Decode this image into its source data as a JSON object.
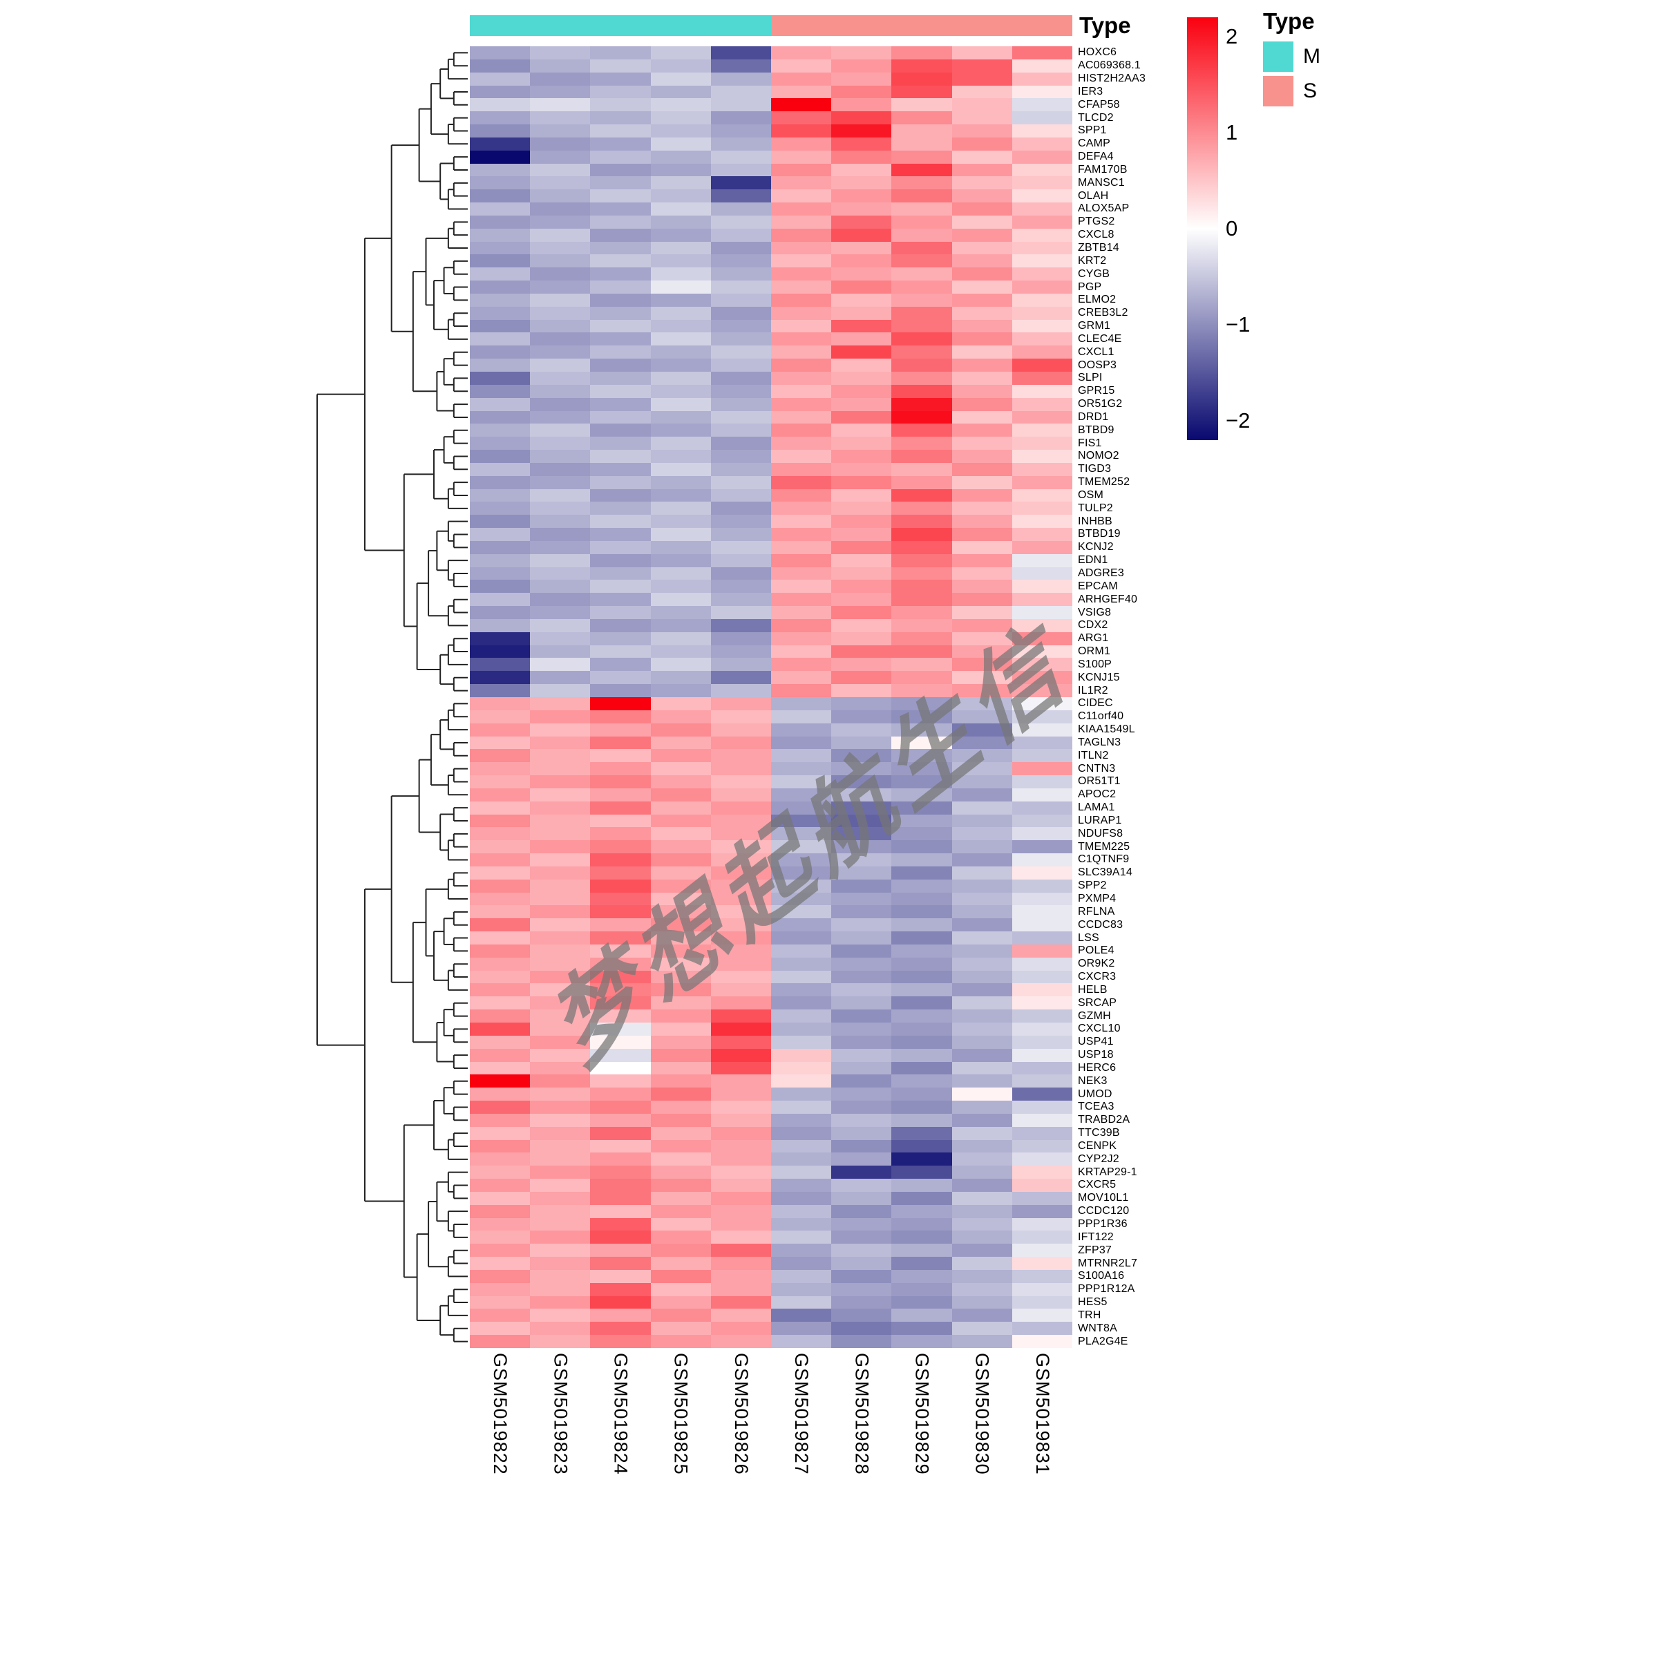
{
  "annotation": {
    "title": "Type"
  },
  "legend": {
    "title": "Type",
    "items": [
      {
        "label": "M",
        "color": "#4FD9D2"
      },
      {
        "label": "S",
        "color": "#F8928D"
      }
    ]
  },
  "colorbar": {
    "ticks": [
      "2",
      "1",
      "0",
      "−1",
      "−2"
    ],
    "tick_values": [
      2,
      1,
      0,
      -1,
      -2
    ],
    "max_color": "#FA000F",
    "mid_color": "#FFFFFF",
    "min_color": "#08086F"
  },
  "watermark": {
    "text": "梦想起航生信"
  },
  "chart_data": {
    "type": "heatmap",
    "title": "",
    "legend_position": "right",
    "value_range": [
      -2.2,
      2.2
    ],
    "colormap": "navy-white-red",
    "columns": [
      "GSM5019822",
      "GSM5019823",
      "GSM5019824",
      "GSM5019825",
      "GSM5019826",
      "GSM5019827",
      "GSM5019828",
      "GSM5019829",
      "GSM5019830",
      "GSM5019831"
    ],
    "column_annotation": [
      "M",
      "M",
      "M",
      "M",
      "M",
      "S",
      "S",
      "S",
      "S",
      "S"
    ],
    "annotation_colors": {
      "M": "#4FD9D2",
      "S": "#F8928D"
    },
    "rows": [
      "HOXC6",
      "AC069368.1",
      "HIST2H2AA3",
      "IER3",
      "CFAP58",
      "TLCD2",
      "SPP1",
      "CAMP",
      "DEFA4",
      "FAM170B",
      "MANSC1",
      "OLAH",
      "ALOX5AP",
      "PTGS2",
      "CXCL8",
      "ZBTB14",
      "KRT2",
      "CYGB",
      "PGP",
      "ELMO2",
      "CREB3L2",
      "GRM1",
      "CLEC4E",
      "CXCL1",
      "OOSP3",
      "SLPI",
      "GPR15",
      "OR51G2",
      "DRD1",
      "BTBD9",
      "FIS1",
      "NOMO2",
      "TIGD3",
      "TMEM252",
      "OSM",
      "TULP2",
      "INHBB",
      "BTBD19",
      "KCNJ2",
      "EDN1",
      "ADGRE3",
      "EPCAM",
      "ARHGEF40",
      "VSIG8",
      "CDX2",
      "ARG1",
      "ORM1",
      "S100P",
      "KCNJ15",
      "IL1R2",
      "CIDEC",
      "C11orf40",
      "KIAA1549L",
      "TAGLN3",
      "ITLN2",
      "CNTN3",
      "OR51T1",
      "APOC2",
      "LAMA1",
      "LURAP1",
      "NDUFS8",
      "TMEM225",
      "C1QTNF9",
      "SLC39A14",
      "SPP2",
      "PXMP4",
      "RFLNA",
      "CCDC83",
      "LSS",
      "POLE4",
      "OR9K2",
      "CXCR3",
      "HELB",
      "SRCAP",
      "GZMH",
      "CXCL10",
      "USP41",
      "USP18",
      "HERC6",
      "NEK3",
      "UMOD",
      "TCEA3",
      "TRABD2A",
      "TTC39B",
      "CENPK",
      "CYP2J2",
      "KRTAP29-1",
      "CXCR5",
      "MOV10L1",
      "CCDC120",
      "PPP1R36",
      "IFT122",
      "ZFP37",
      "MTRNR2L7",
      "S100A16",
      "PPP1R12A",
      "HES5",
      "TRH",
      "WNT8A",
      "PLA2G4E"
    ],
    "values": [
      [
        -0.8,
        -0.6,
        -0.7,
        -0.5,
        -1.6,
        0.8,
        0.7,
        1.0,
        0.6,
        1.2
      ],
      [
        -1.0,
        -0.7,
        -0.5,
        -0.6,
        -1.3,
        0.6,
        0.9,
        1.5,
        1.4,
        0.3
      ],
      [
        -0.6,
        -0.9,
        -0.8,
        -0.4,
        -0.7,
        0.9,
        0.8,
        1.6,
        1.4,
        0.6
      ],
      [
        -0.9,
        -0.8,
        -0.6,
        -0.7,
        -0.5,
        0.7,
        1.1,
        1.5,
        0.5,
        0.2
      ],
      [
        -0.4,
        -0.3,
        -0.5,
        -0.4,
        -0.5,
        2.2,
        0.9,
        0.5,
        0.6,
        -0.3
      ],
      [
        -0.8,
        -0.6,
        -0.7,
        -0.5,
        -0.9,
        1.3,
        1.6,
        1.0,
        0.6,
        -0.4
      ],
      [
        -1.0,
        -0.7,
        -0.5,
        -0.6,
        -0.8,
        1.5,
        2.0,
        0.7,
        0.8,
        0.3
      ],
      [
        -1.8,
        -0.9,
        -0.8,
        -0.4,
        -0.7,
        0.9,
        1.4,
        0.7,
        1.0,
        0.6
      ],
      [
        -2.2,
        -0.8,
        -0.6,
        -0.7,
        -0.5,
        0.7,
        1.1,
        1.0,
        0.5,
        0.8
      ],
      [
        -0.7,
        -0.5,
        -0.9,
        -0.8,
        -0.6,
        1.0,
        0.6,
        1.7,
        0.9,
        0.4
      ],
      [
        -0.8,
        -0.6,
        -0.7,
        -0.5,
        -1.8,
        0.8,
        0.7,
        1.0,
        0.6,
        0.5
      ],
      [
        -1.0,
        -0.7,
        -0.5,
        -0.6,
        -1.4,
        0.6,
        0.9,
        1.2,
        0.8,
        0.3
      ],
      [
        -0.6,
        -0.9,
        -0.8,
        -0.4,
        -0.7,
        0.9,
        0.8,
        0.7,
        1.0,
        0.6
      ],
      [
        -0.9,
        -0.8,
        -0.6,
        -0.7,
        -0.5,
        0.7,
        1.3,
        0.9,
        0.5,
        0.8
      ],
      [
        -0.7,
        -0.5,
        -0.9,
        -0.8,
        -0.6,
        1.0,
        1.5,
        0.8,
        0.9,
        0.4
      ],
      [
        -0.8,
        -0.6,
        -0.7,
        -0.5,
        -0.9,
        0.8,
        0.7,
        1.3,
        0.6,
        0.5
      ],
      [
        -1.0,
        -0.7,
        -0.5,
        -0.6,
        -0.8,
        0.6,
        0.9,
        1.2,
        0.8,
        0.3
      ],
      [
        -0.6,
        -0.9,
        -0.8,
        -0.4,
        -0.7,
        0.9,
        0.8,
        0.7,
        1.0,
        0.6
      ],
      [
        -0.9,
        -0.8,
        -0.6,
        -0.2,
        -0.5,
        0.7,
        1.1,
        0.9,
        0.5,
        0.8
      ],
      [
        -0.7,
        -0.5,
        -0.9,
        -0.8,
        -0.6,
        1.0,
        0.6,
        0.8,
        0.9,
        0.4
      ],
      [
        -0.8,
        -0.6,
        -0.7,
        -0.5,
        -0.9,
        0.8,
        0.7,
        1.2,
        0.6,
        0.5
      ],
      [
        -1.0,
        -0.7,
        -0.5,
        -0.6,
        -0.8,
        0.6,
        1.4,
        1.2,
        0.8,
        0.3
      ],
      [
        -0.6,
        -0.9,
        -0.8,
        -0.4,
        -0.7,
        0.9,
        0.8,
        1.5,
        1.0,
        0.6
      ],
      [
        -0.9,
        -0.8,
        -0.6,
        -0.7,
        -0.5,
        0.7,
        1.6,
        1.2,
        0.5,
        0.8
      ],
      [
        -0.7,
        -0.5,
        -0.9,
        -0.8,
        -0.6,
        1.0,
        0.6,
        1.3,
        0.9,
        1.5
      ],
      [
        -1.3,
        -0.6,
        -0.7,
        -0.5,
        -0.9,
        0.8,
        0.7,
        1.0,
        0.6,
        1.2
      ],
      [
        -1.0,
        -0.7,
        -0.5,
        -0.6,
        -0.8,
        0.6,
        0.9,
        1.5,
        0.8,
        0.3
      ],
      [
        -0.6,
        -0.9,
        -0.8,
        -0.4,
        -0.7,
        0.9,
        0.8,
        2.0,
        1.0,
        0.6
      ],
      [
        -0.9,
        -0.8,
        -0.6,
        -0.7,
        -0.5,
        0.7,
        1.2,
        2.1,
        0.5,
        0.8
      ],
      [
        -0.7,
        -0.5,
        -0.9,
        -0.8,
        -0.6,
        1.0,
        0.6,
        1.4,
        0.9,
        0.4
      ],
      [
        -0.8,
        -0.6,
        -0.7,
        -0.5,
        -0.9,
        0.8,
        0.7,
        1.0,
        0.6,
        0.5
      ],
      [
        -1.0,
        -0.7,
        -0.5,
        -0.6,
        -0.8,
        0.6,
        0.9,
        1.2,
        0.8,
        0.3
      ],
      [
        -0.6,
        -0.9,
        -0.8,
        -0.4,
        -0.7,
        0.9,
        0.8,
        0.7,
        1.0,
        0.6
      ],
      [
        -0.9,
        -0.8,
        -0.6,
        -0.7,
        -0.5,
        1.3,
        1.1,
        0.9,
        0.5,
        0.8
      ],
      [
        -0.7,
        -0.5,
        -0.9,
        -0.8,
        -0.6,
        1.0,
        0.6,
        1.5,
        0.9,
        0.4
      ],
      [
        -0.8,
        -0.6,
        -0.7,
        -0.5,
        -0.9,
        0.8,
        0.7,
        1.0,
        0.6,
        0.5
      ],
      [
        -1.0,
        -0.7,
        -0.5,
        -0.6,
        -0.8,
        0.6,
        0.9,
        1.3,
        0.8,
        0.3
      ],
      [
        -0.6,
        -0.9,
        -0.8,
        -0.4,
        -0.7,
        0.9,
        0.8,
        1.6,
        1.0,
        0.6
      ],
      [
        -0.9,
        -0.8,
        -0.6,
        -0.7,
        -0.5,
        0.7,
        1.1,
        1.4,
        0.5,
        0.8
      ],
      [
        -0.7,
        -0.5,
        -0.9,
        -0.8,
        -0.6,
        1.0,
        0.6,
        1.2,
        0.9,
        -0.2
      ],
      [
        -0.8,
        -0.6,
        -0.7,
        -0.5,
        -0.9,
        0.8,
        0.7,
        1.0,
        0.6,
        -0.3
      ],
      [
        -1.0,
        -0.7,
        -0.5,
        -0.6,
        -0.8,
        0.6,
        0.9,
        1.2,
        0.8,
        0.3
      ],
      [
        -0.6,
        -0.9,
        -0.8,
        -0.4,
        -0.7,
        0.9,
        0.8,
        1.2,
        1.0,
        0.6
      ],
      [
        -0.9,
        -0.8,
        -0.6,
        -0.7,
        -0.5,
        0.7,
        1.1,
        0.9,
        0.5,
        -0.2
      ],
      [
        -0.7,
        -0.5,
        -0.9,
        -0.8,
        -1.2,
        1.0,
        0.6,
        0.8,
        0.9,
        0.4
      ],
      [
        -1.9,
        -0.6,
        -0.7,
        -0.5,
        -0.9,
        0.8,
        0.7,
        1.0,
        0.6,
        1.0
      ],
      [
        -2.0,
        -0.7,
        -0.5,
        -0.6,
        -0.8,
        0.6,
        1.2,
        1.2,
        0.8,
        0.3
      ],
      [
        -1.5,
        -0.3,
        -0.8,
        -0.4,
        -0.7,
        0.9,
        0.8,
        0.7,
        1.0,
        0.6
      ],
      [
        -1.9,
        -0.8,
        -0.6,
        -0.7,
        -1.2,
        0.7,
        1.1,
        0.9,
        0.5,
        0.9
      ],
      [
        -1.2,
        -0.5,
        -0.9,
        -0.8,
        -0.6,
        1.0,
        0.6,
        0.8,
        0.9,
        0.8
      ],
      [
        0.8,
        0.7,
        2.2,
        0.6,
        0.8,
        -0.7,
        -0.8,
        -0.9,
        -0.6,
        -0.1
      ],
      [
        0.7,
        0.9,
        1.1,
        0.8,
        0.6,
        -0.5,
        -0.9,
        -1.0,
        -0.7,
        -0.4
      ],
      [
        0.9,
        0.6,
        0.8,
        1.0,
        0.7,
        -0.8,
        -0.6,
        -0.7,
        -1.2,
        -0.2
      ],
      [
        0.6,
        0.8,
        1.2,
        0.7,
        0.9,
        -0.9,
        -0.7,
        0.1,
        -1.0,
        -0.6
      ],
      [
        1.0,
        0.7,
        0.6,
        0.9,
        0.8,
        -0.6,
        -1.0,
        -0.8,
        -0.7,
        -0.5
      ],
      [
        0.8,
        0.7,
        0.9,
        0.6,
        0.8,
        -0.7,
        -0.8,
        -0.9,
        -0.6,
        0.9
      ],
      [
        0.7,
        0.9,
        1.1,
        0.8,
        0.6,
        -0.5,
        -1.1,
        -1.0,
        -0.7,
        -0.4
      ],
      [
        0.9,
        0.6,
        0.8,
        1.0,
        0.7,
        -0.8,
        -0.6,
        -0.7,
        -0.9,
        -0.2
      ],
      [
        0.6,
        0.8,
        1.2,
        0.7,
        0.9,
        -0.9,
        -1.3,
        -1.1,
        -0.5,
        -0.6
      ],
      [
        1.0,
        0.7,
        0.6,
        0.9,
        0.8,
        -1.2,
        -1.4,
        -0.8,
        -0.7,
        -0.5
      ],
      [
        0.8,
        0.7,
        0.9,
        0.6,
        0.8,
        -0.7,
        -1.3,
        -0.9,
        -0.6,
        -0.3
      ],
      [
        0.7,
        0.9,
        1.1,
        0.8,
        0.6,
        -0.5,
        -0.9,
        -1.0,
        -0.7,
        -0.9
      ],
      [
        0.9,
        0.6,
        1.4,
        1.0,
        0.7,
        -0.8,
        -0.6,
        -0.7,
        -0.9,
        -0.2
      ],
      [
        0.6,
        0.8,
        1.2,
        0.7,
        0.9,
        -0.9,
        -0.7,
        -1.1,
        -0.5,
        0.2
      ],
      [
        1.0,
        0.7,
        1.5,
        0.9,
        0.8,
        -0.6,
        -1.0,
        -0.8,
        -0.7,
        -0.5
      ],
      [
        0.8,
        0.7,
        1.3,
        0.6,
        0.8,
        -0.7,
        -0.8,
        -0.9,
        -0.6,
        -0.3
      ],
      [
        0.7,
        0.9,
        1.4,
        0.8,
        0.6,
        -0.5,
        -0.9,
        -1.0,
        -0.7,
        -0.2
      ],
      [
        1.2,
        0.6,
        0.8,
        1.0,
        0.7,
        -0.8,
        -0.6,
        -0.7,
        -0.9,
        -0.2
      ],
      [
        0.6,
        0.8,
        1.2,
        0.7,
        0.9,
        -0.9,
        -0.7,
        -1.1,
        -0.5,
        -0.6
      ],
      [
        1.0,
        0.7,
        0.6,
        0.9,
        0.8,
        -0.6,
        -1.0,
        -0.8,
        -0.7,
        0.8
      ],
      [
        0.8,
        0.7,
        0.9,
        0.6,
        0.8,
        -0.7,
        -0.8,
        -0.9,
        -0.6,
        -0.3
      ],
      [
        0.7,
        0.9,
        1.3,
        0.8,
        0.6,
        -0.5,
        -0.9,
        -1.0,
        -0.7,
        -0.4
      ],
      [
        0.9,
        0.6,
        1.1,
        1.0,
        0.7,
        -0.8,
        -0.6,
        -0.7,
        -0.9,
        0.3
      ],
      [
        0.6,
        0.8,
        1.2,
        0.7,
        0.9,
        -0.9,
        -0.7,
        -1.1,
        -0.5,
        0.2
      ],
      [
        1.0,
        0.7,
        0.6,
        0.9,
        1.5,
        -0.6,
        -1.0,
        -0.8,
        -0.7,
        -0.5
      ],
      [
        1.5,
        0.7,
        -0.2,
        0.6,
        1.8,
        -0.7,
        -0.8,
        -0.9,
        -0.6,
        -0.3
      ],
      [
        0.7,
        0.9,
        0.1,
        0.8,
        1.4,
        -0.5,
        -0.9,
        -1.0,
        -0.7,
        -0.4
      ],
      [
        0.9,
        0.6,
        -0.3,
        1.0,
        1.7,
        0.5,
        -0.6,
        -0.7,
        -0.9,
        -0.2
      ],
      [
        0.6,
        0.8,
        0.0,
        0.7,
        1.5,
        0.4,
        -0.7,
        -1.1,
        -0.5,
        -0.6
      ],
      [
        2.2,
        1.0,
        0.6,
        0.9,
        0.8,
        0.3,
        -1.0,
        -0.8,
        -0.7,
        -0.5
      ],
      [
        0.8,
        0.7,
        0.9,
        1.2,
        0.8,
        -0.7,
        -0.8,
        -0.9,
        0.1,
        -1.3
      ],
      [
        1.3,
        0.9,
        1.1,
        0.8,
        0.6,
        -0.5,
        -0.9,
        -1.0,
        -0.7,
        -0.4
      ],
      [
        0.9,
        0.6,
        0.8,
        1.0,
        0.7,
        -0.8,
        -0.6,
        -0.7,
        -0.9,
        -0.2
      ],
      [
        0.6,
        0.8,
        1.3,
        0.7,
        0.9,
        -0.9,
        -0.7,
        -1.3,
        -0.5,
        -0.6
      ],
      [
        1.0,
        0.7,
        0.6,
        0.9,
        0.8,
        -0.6,
        -1.0,
        -1.5,
        -0.7,
        -0.5
      ],
      [
        0.8,
        0.7,
        0.9,
        0.6,
        0.8,
        -0.7,
        -0.8,
        -2.0,
        -0.6,
        -0.3
      ],
      [
        0.7,
        0.9,
        1.1,
        0.8,
        0.6,
        -0.5,
        -1.8,
        -1.6,
        -0.7,
        0.4
      ],
      [
        0.9,
        0.6,
        1.2,
        1.0,
        0.7,
        -0.8,
        -0.6,
        -0.7,
        -0.9,
        0.5
      ],
      [
        0.6,
        0.8,
        1.2,
        0.7,
        0.9,
        -0.9,
        -0.7,
        -1.1,
        -0.5,
        -0.6
      ],
      [
        1.0,
        0.7,
        0.6,
        0.9,
        0.8,
        -0.6,
        -1.0,
        -0.8,
        -0.7,
        -0.9
      ],
      [
        0.8,
        0.7,
        1.4,
        0.6,
        0.8,
        -0.7,
        -0.8,
        -0.9,
        -0.6,
        -0.3
      ],
      [
        0.7,
        0.9,
        1.5,
        0.9,
        0.6,
        -0.5,
        -0.9,
        -1.0,
        -0.7,
        -0.4
      ],
      [
        0.9,
        0.6,
        0.8,
        1.0,
        1.3,
        -0.8,
        -0.6,
        -0.7,
        -0.9,
        -0.2
      ],
      [
        0.6,
        0.8,
        1.2,
        0.7,
        0.9,
        -0.9,
        -0.7,
        -1.1,
        -0.5,
        0.3
      ],
      [
        1.0,
        0.7,
        0.6,
        1.1,
        0.8,
        -0.6,
        -1.0,
        -0.8,
        -0.7,
        -0.5
      ],
      [
        0.8,
        0.7,
        1.4,
        0.6,
        0.8,
        -0.7,
        -0.8,
        -0.9,
        -0.6,
        -0.3
      ],
      [
        0.7,
        0.9,
        1.6,
        0.8,
        1.2,
        -0.5,
        -0.9,
        -1.0,
        -0.7,
        -0.4
      ],
      [
        0.9,
        0.6,
        0.8,
        1.0,
        0.7,
        -1.2,
        -1.0,
        -0.7,
        -0.9,
        -0.2
      ],
      [
        0.6,
        0.8,
        1.3,
        0.7,
        0.9,
        -0.9,
        -1.2,
        -1.1,
        -0.5,
        -0.6
      ],
      [
        1.0,
        0.7,
        1.1,
        0.9,
        0.8,
        -0.6,
        -1.0,
        -0.8,
        -0.7,
        0.1
      ]
    ]
  }
}
